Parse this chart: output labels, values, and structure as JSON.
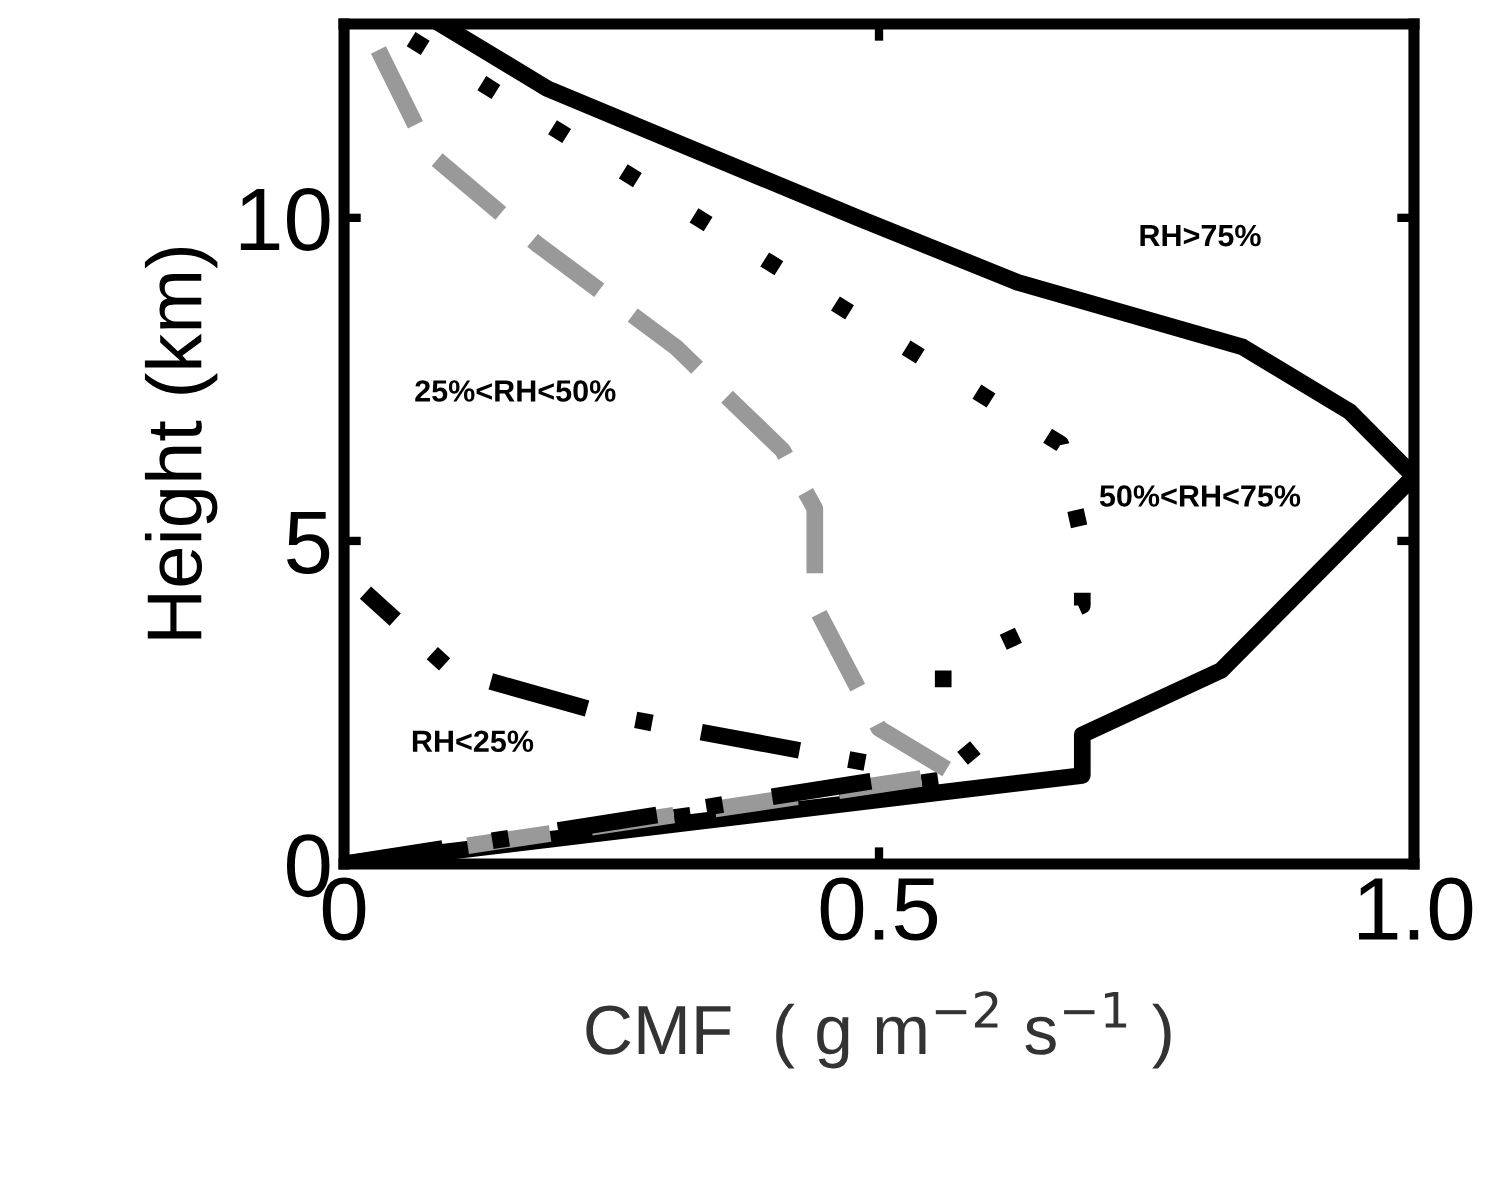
{
  "chart_data": {
    "type": "line",
    "xlabel": "CMF  ( g m$^{−2}$ s$^{−1}$ )",
    "ylabel": "Height (km)",
    "xlim": [
      0,
      1
    ],
    "ylim": [
      0,
      13
    ],
    "xticks": [
      0,
      0.5,
      {
        "value": 1,
        "label": "1.0"
      }
    ],
    "yticks": [
      0,
      5,
      10
    ],
    "grid": false,
    "legend": false,
    "series": [
      {
        "name": "RH>75%",
        "color": "#000000",
        "line_style": "solid",
        "x": [
          0,
          0.69,
          0.69,
          0.82,
          1.0,
          0.94,
          0.84,
          0.63,
          0.48,
          0.19,
          0.09
        ],
        "values": [
          0,
          1.37,
          2,
          3,
          6,
          7,
          8,
          9,
          10,
          12,
          13
        ]
      },
      {
        "name": "50%<RH<75%",
        "color": "#000000",
        "line_style": "dotted",
        "x": [
          0,
          0.6,
          0.56,
          0.56,
          0.69,
          0.69,
          0.67,
          0.04
        ],
        "values": [
          0,
          1.4,
          2.2,
          3,
          4,
          5,
          6.5,
          13
        ]
      },
      {
        "name": "25%<RH<50%",
        "color": "#999999",
        "line_style": "dashed",
        "x": [
          0,
          0.57,
          0.5,
          0.44,
          0.44,
          0.41,
          0.31,
          0.18,
          0.08,
          0.02
        ],
        "values": [
          0,
          1.4,
          2.1,
          4,
          5.5,
          6.4,
          8,
          9.6,
          11,
          13
        ]
      },
      {
        "name": "RH<25%",
        "color": "#000000",
        "line_style": "dashdot",
        "x": [
          0,
          0.5,
          0.51,
          0.25,
          0.1,
          0.08,
          0.02
        ],
        "values": [
          0,
          1.3,
          1.5,
          2.3,
          3.0,
          3.3,
          4.2
        ]
      }
    ]
  }
}
